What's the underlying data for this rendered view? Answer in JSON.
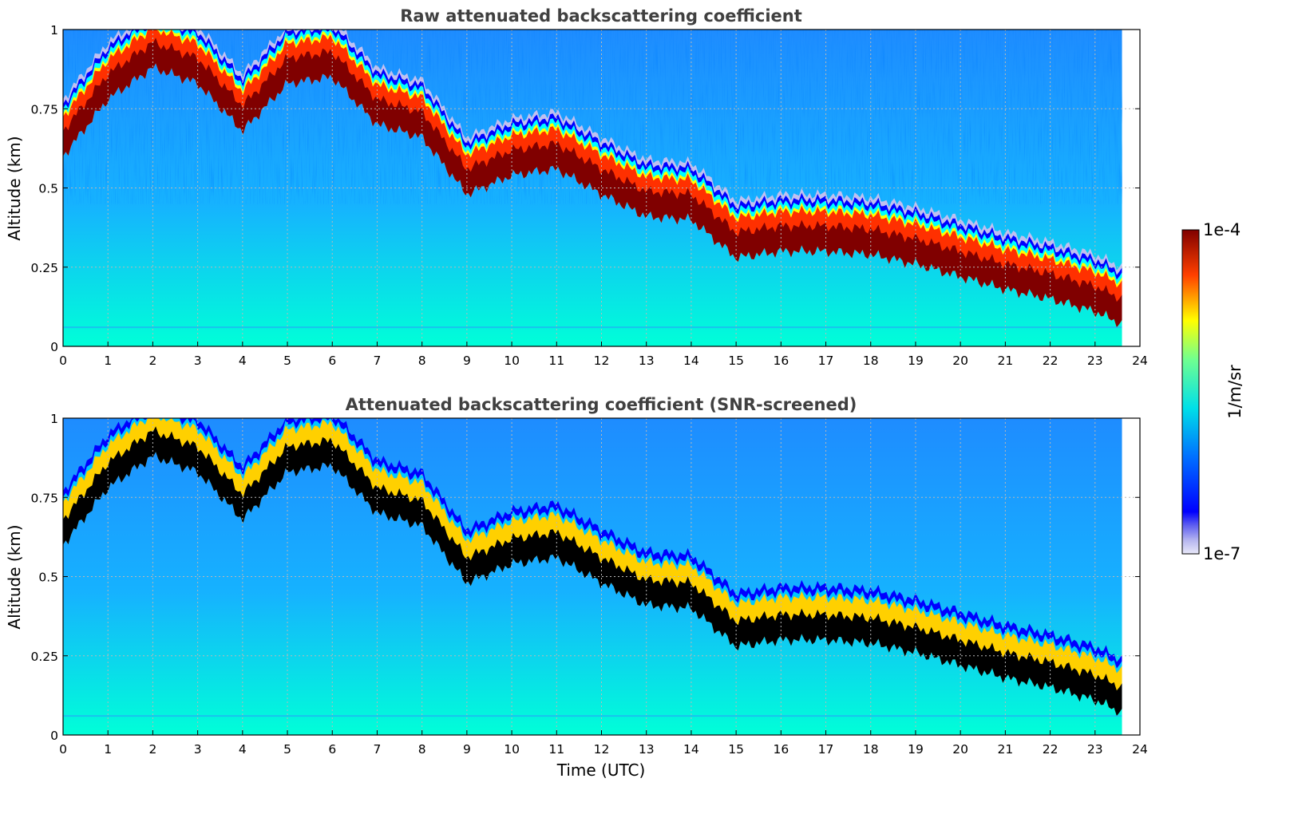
{
  "chart_data": [
    {
      "type": "heatmap",
      "title": "Raw attenuated backscattering coefficient",
      "xlabel": "",
      "ylabel": "Altitude (km)",
      "xlim": [
        0,
        24
      ],
      "ylim": [
        0,
        1
      ],
      "xticks": [
        "0",
        "1",
        "2",
        "3",
        "4",
        "5",
        "6",
        "7",
        "8",
        "9",
        "10",
        "11",
        "12",
        "13",
        "14",
        "15",
        "16",
        "17",
        "18",
        "19",
        "20",
        "21",
        "22",
        "23",
        "24"
      ],
      "yticks": [
        "0",
        "0.25",
        "0.5",
        "0.75",
        "1"
      ],
      "grid": true,
      "screened": false,
      "data_end_hour": 23.6,
      "cloud_base_km": {
        "hours": [
          0,
          1,
          2,
          3,
          4,
          5,
          6,
          7,
          8,
          9,
          10,
          11,
          12,
          13,
          14,
          15,
          16,
          17,
          18,
          19,
          20,
          21,
          22,
          23,
          23.6
        ],
        "values": [
          0.62,
          0.8,
          0.9,
          0.85,
          0.7,
          0.85,
          0.87,
          0.72,
          0.68,
          0.5,
          0.56,
          0.58,
          0.5,
          0.43,
          0.42,
          0.3,
          0.32,
          0.32,
          0.31,
          0.28,
          0.24,
          0.2,
          0.17,
          0.13,
          0.09
        ]
      }
    },
    {
      "type": "heatmap",
      "title": "Attenuated backscattering coefficient (SNR-screened)",
      "xlabel": "Time (UTC)",
      "ylabel": "Altitude (km)",
      "xlim": [
        0,
        24
      ],
      "ylim": [
        0,
        1
      ],
      "xticks": [
        "0",
        "1",
        "2",
        "3",
        "4",
        "5",
        "6",
        "7",
        "8",
        "9",
        "10",
        "11",
        "12",
        "13",
        "14",
        "15",
        "16",
        "17",
        "18",
        "19",
        "20",
        "21",
        "22",
        "23",
        "24"
      ],
      "yticks": [
        "0",
        "0.25",
        "0.5",
        "0.75",
        "1"
      ],
      "grid": true,
      "screened": true,
      "data_end_hour": 23.6,
      "cloud_base_km": {
        "hours": [
          0,
          1,
          2,
          3,
          4,
          5,
          6,
          7,
          8,
          9,
          10,
          11,
          12,
          13,
          14,
          15,
          16,
          17,
          18,
          19,
          20,
          21,
          22,
          23,
          23.6
        ],
        "values": [
          0.62,
          0.8,
          0.9,
          0.85,
          0.7,
          0.85,
          0.87,
          0.72,
          0.68,
          0.5,
          0.56,
          0.58,
          0.5,
          0.43,
          0.42,
          0.3,
          0.32,
          0.32,
          0.31,
          0.28,
          0.24,
          0.2,
          0.17,
          0.13,
          0.09
        ]
      }
    }
  ],
  "colorbar": {
    "label": "1/m/sr",
    "min_label": "1e-7",
    "max_label": "1e-4",
    "colormap": "jet",
    "scale": "log"
  }
}
